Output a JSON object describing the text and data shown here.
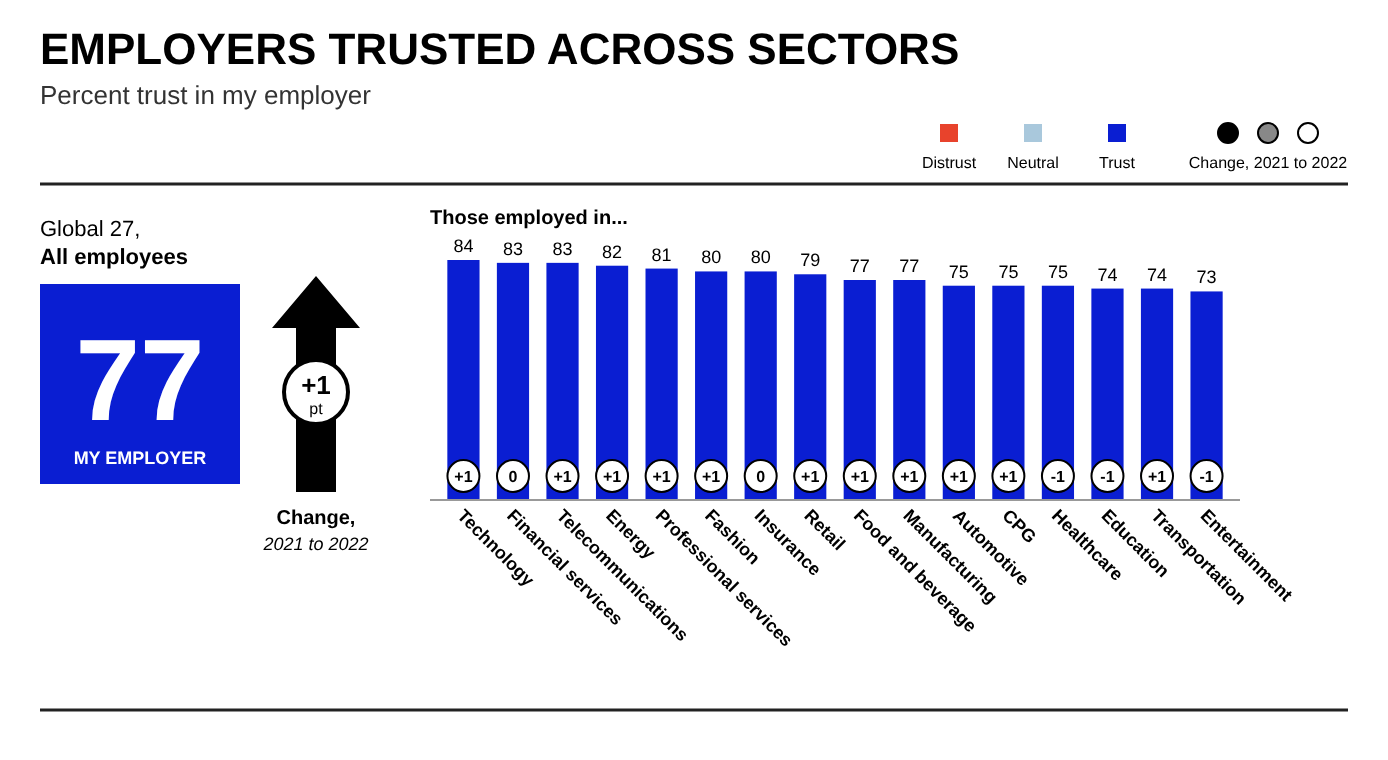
{
  "chart_data": {
    "type": "bar",
    "title": "EMPLOYERS TRUSTED ACROSS SECTORS",
    "subtitle": "Percent trust in my employer",
    "categories": [
      "Technology",
      "Financial services",
      "Telecommunications",
      "Energy",
      "Professional services",
      "Fashion",
      "Insurance",
      "Retail",
      "Food and beverage",
      "Manufacturing",
      "Automotive",
      "CPG",
      "Healthcare",
      "Education",
      "Transportation",
      "Entertainment"
    ],
    "series": [
      {
        "name": "Distrust",
        "color": "#e8432c",
        "values": [
          null,
          null,
          null,
          null,
          null,
          null,
          null,
          null,
          null,
          null,
          null,
          null,
          null,
          null,
          null,
          null
        ]
      },
      {
        "name": "Neutral",
        "color": "#a9c8dc",
        "values": [
          null,
          null,
          null,
          null,
          null,
          null,
          null,
          null,
          null,
          null,
          null,
          null,
          null,
          null,
          null,
          null
        ]
      },
      {
        "name": "Trust",
        "color": "#0a1ed2",
        "values": [
          84,
          83,
          83,
          82,
          81,
          80,
          80,
          79,
          77,
          77,
          75,
          75,
          75,
          74,
          74,
          73
        ]
      }
    ],
    "data_labels": true,
    "legend": "top right",
    "annotations": [
      "Those employed in...",
      "Global 27,",
      "All employees",
      "77",
      "MY EMPLOYER",
      "+1",
      "pt",
      "Change,",
      "2021 to 2022",
      "Change, 2021 to 2022",
      {
        "text": "+1",
        "x": "Technology"
      },
      {
        "text": "0",
        "x": "Financial services"
      },
      {
        "text": "+1",
        "x": "Telecommunications"
      },
      {
        "text": "+1",
        "x": "Energy"
      },
      {
        "text": "+1",
        "x": "Professional services"
      },
      {
        "text": "+1",
        "x": "Fashion"
      },
      {
        "text": "0",
        "x": "Insurance"
      },
      {
        "text": "+1",
        "x": "Retail"
      },
      {
        "text": "+1",
        "x": "Food and beverage"
      },
      {
        "text": "+1",
        "x": "Manufacturing"
      },
      {
        "text": "+1",
        "x": "Automotive"
      },
      {
        "text": "+1",
        "x": "CPG"
      },
      {
        "text": "-1",
        "x": "Healthcare"
      },
      {
        "text": "-1",
        "x": "Education"
      },
      {
        "text": "+1",
        "x": "Transportation"
      },
      {
        "text": "-1",
        "x": "Entertainment"
      }
    ]
  }
}
